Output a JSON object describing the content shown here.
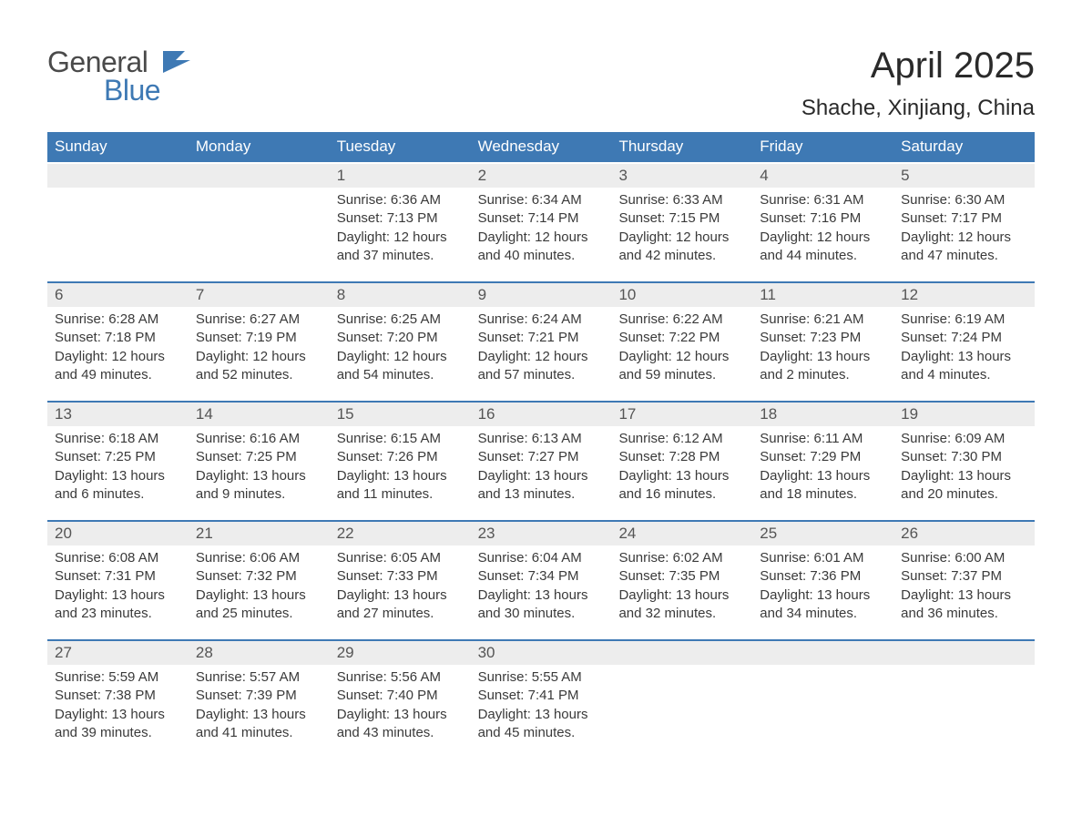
{
  "brand": {
    "word1": "General",
    "word2": "Blue"
  },
  "title": "April 2025",
  "location": "Shache, Xinjiang, China",
  "colors": {
    "header_bg": "#3e79b4",
    "header_text": "#ffffff",
    "daynum_bg": "#ededed",
    "body_text": "#3a3a3a",
    "page_bg": "#ffffff",
    "brand_general": "#4a4a4a",
    "brand_blue": "#3e79b4",
    "row_divider": "#3e79b4"
  },
  "layout": {
    "columns": 7,
    "rows": 5,
    "first_weekday_index": 2
  },
  "weekdays": [
    "Sunday",
    "Monday",
    "Tuesday",
    "Wednesday",
    "Thursday",
    "Friday",
    "Saturday"
  ],
  "days": [
    {
      "n": 1,
      "sunrise": "6:36 AM",
      "sunset": "7:13 PM",
      "daylight": "12 hours and 37 minutes."
    },
    {
      "n": 2,
      "sunrise": "6:34 AM",
      "sunset": "7:14 PM",
      "daylight": "12 hours and 40 minutes."
    },
    {
      "n": 3,
      "sunrise": "6:33 AM",
      "sunset": "7:15 PM",
      "daylight": "12 hours and 42 minutes."
    },
    {
      "n": 4,
      "sunrise": "6:31 AM",
      "sunset": "7:16 PM",
      "daylight": "12 hours and 44 minutes."
    },
    {
      "n": 5,
      "sunrise": "6:30 AM",
      "sunset": "7:17 PM",
      "daylight": "12 hours and 47 minutes."
    },
    {
      "n": 6,
      "sunrise": "6:28 AM",
      "sunset": "7:18 PM",
      "daylight": "12 hours and 49 minutes."
    },
    {
      "n": 7,
      "sunrise": "6:27 AM",
      "sunset": "7:19 PM",
      "daylight": "12 hours and 52 minutes."
    },
    {
      "n": 8,
      "sunrise": "6:25 AM",
      "sunset": "7:20 PM",
      "daylight": "12 hours and 54 minutes."
    },
    {
      "n": 9,
      "sunrise": "6:24 AM",
      "sunset": "7:21 PM",
      "daylight": "12 hours and 57 minutes."
    },
    {
      "n": 10,
      "sunrise": "6:22 AM",
      "sunset": "7:22 PM",
      "daylight": "12 hours and 59 minutes."
    },
    {
      "n": 11,
      "sunrise": "6:21 AM",
      "sunset": "7:23 PM",
      "daylight": "13 hours and 2 minutes."
    },
    {
      "n": 12,
      "sunrise": "6:19 AM",
      "sunset": "7:24 PM",
      "daylight": "13 hours and 4 minutes."
    },
    {
      "n": 13,
      "sunrise": "6:18 AM",
      "sunset": "7:25 PM",
      "daylight": "13 hours and 6 minutes."
    },
    {
      "n": 14,
      "sunrise": "6:16 AM",
      "sunset": "7:25 PM",
      "daylight": "13 hours and 9 minutes."
    },
    {
      "n": 15,
      "sunrise": "6:15 AM",
      "sunset": "7:26 PM",
      "daylight": "13 hours and 11 minutes."
    },
    {
      "n": 16,
      "sunrise": "6:13 AM",
      "sunset": "7:27 PM",
      "daylight": "13 hours and 13 minutes."
    },
    {
      "n": 17,
      "sunrise": "6:12 AM",
      "sunset": "7:28 PM",
      "daylight": "13 hours and 16 minutes."
    },
    {
      "n": 18,
      "sunrise": "6:11 AM",
      "sunset": "7:29 PM",
      "daylight": "13 hours and 18 minutes."
    },
    {
      "n": 19,
      "sunrise": "6:09 AM",
      "sunset": "7:30 PM",
      "daylight": "13 hours and 20 minutes."
    },
    {
      "n": 20,
      "sunrise": "6:08 AM",
      "sunset": "7:31 PM",
      "daylight": "13 hours and 23 minutes."
    },
    {
      "n": 21,
      "sunrise": "6:06 AM",
      "sunset": "7:32 PM",
      "daylight": "13 hours and 25 minutes."
    },
    {
      "n": 22,
      "sunrise": "6:05 AM",
      "sunset": "7:33 PM",
      "daylight": "13 hours and 27 minutes."
    },
    {
      "n": 23,
      "sunrise": "6:04 AM",
      "sunset": "7:34 PM",
      "daylight": "13 hours and 30 minutes."
    },
    {
      "n": 24,
      "sunrise": "6:02 AM",
      "sunset": "7:35 PM",
      "daylight": "13 hours and 32 minutes."
    },
    {
      "n": 25,
      "sunrise": "6:01 AM",
      "sunset": "7:36 PM",
      "daylight": "13 hours and 34 minutes."
    },
    {
      "n": 26,
      "sunrise": "6:00 AM",
      "sunset": "7:37 PM",
      "daylight": "13 hours and 36 minutes."
    },
    {
      "n": 27,
      "sunrise": "5:59 AM",
      "sunset": "7:38 PM",
      "daylight": "13 hours and 39 minutes."
    },
    {
      "n": 28,
      "sunrise": "5:57 AM",
      "sunset": "7:39 PM",
      "daylight": "13 hours and 41 minutes."
    },
    {
      "n": 29,
      "sunrise": "5:56 AM",
      "sunset": "7:40 PM",
      "daylight": "13 hours and 43 minutes."
    },
    {
      "n": 30,
      "sunrise": "5:55 AM",
      "sunset": "7:41 PM",
      "daylight": "13 hours and 45 minutes."
    }
  ],
  "labels": {
    "sunrise": "Sunrise: ",
    "sunset": "Sunset: ",
    "daylight": "Daylight: "
  }
}
